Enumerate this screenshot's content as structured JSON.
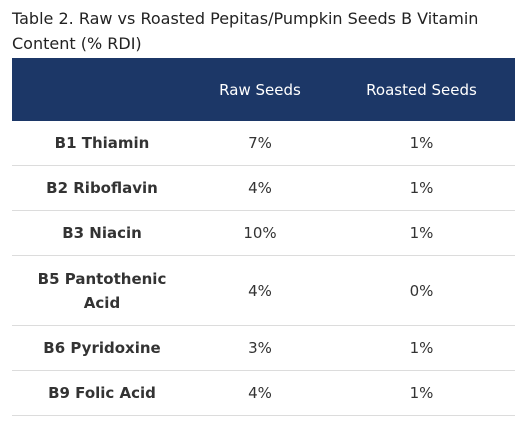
{
  "title": "Table 2. Raw vs Roasted Pepitas/Pumpkin Seeds B Vitamin Content (% RDI)",
  "table": {
    "header": [
      "Raw Seeds",
      "Roasted Seeds"
    ],
    "rows": [
      [
        "B1 Thiamin",
        "7%",
        "1%"
      ],
      [
        "B2 Riboflavin",
        "4%",
        "1%"
      ],
      [
        "B3 Niacin",
        "10%",
        "1%"
      ],
      [
        "B5 Pantothenic Acid",
        "4%",
        "0%"
      ],
      [
        "B6 Pyridoxine",
        "3%",
        "1%"
      ],
      [
        "B9 Folic Acid",
        "4%",
        "1%"
      ]
    ]
  }
}
